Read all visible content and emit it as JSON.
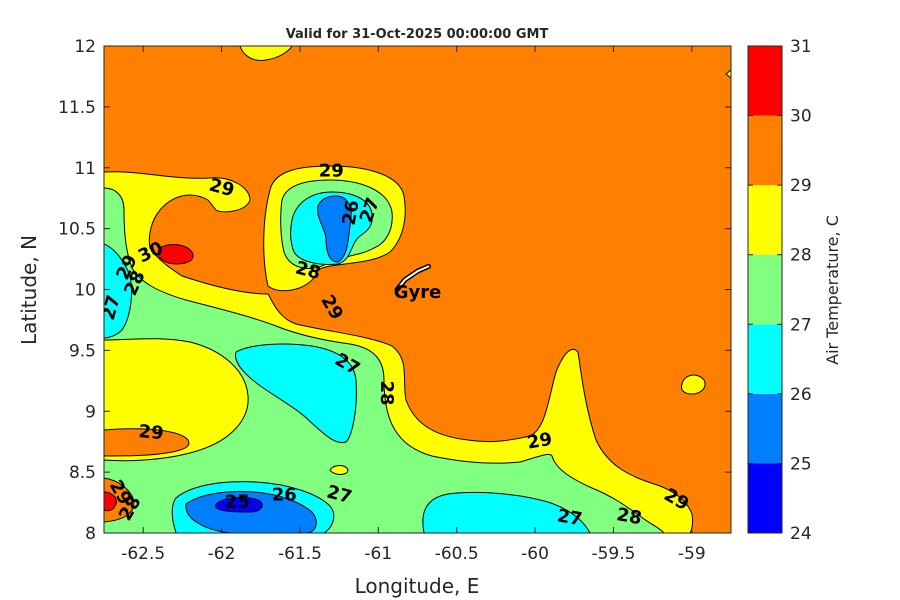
{
  "chart_data": {
    "type": "heatmap",
    "subtype": "filled-contour map",
    "title": "Valid for 31-Oct-2025 00:00:00 GMT",
    "xlabel": "Longitude, E",
    "ylabel": "Latitude, N",
    "xlim": [
      -62.75,
      -58.75
    ],
    "ylim": [
      8,
      12
    ],
    "xticks": [
      -62.5,
      -62,
      -61.5,
      -61,
      -60.5,
      -60,
      -59.5,
      -59
    ],
    "yticks": [
      8,
      8.5,
      9,
      9.5,
      10,
      10.5,
      11,
      11.5,
      12
    ],
    "colorbar": {
      "label": "Air Temperature, C",
      "levels": [
        24,
        25,
        26,
        27,
        28,
        29,
        30,
        31
      ],
      "colors": [
        "#0000ff",
        "#0080ff",
        "#00ffff",
        "#80ff80",
        "#ffff00",
        "#ff8000",
        "#ff0000",
        "#800000"
      ]
    },
    "contour_labels": [
      {
        "text": "29",
        "lon": -61.3,
        "lat": 10.97,
        "rot": 0
      },
      {
        "text": "29",
        "lon": -62.0,
        "lat": 10.83,
        "rot": 15
      },
      {
        "text": "30",
        "lon": -62.45,
        "lat": 10.3,
        "rot": -25
      },
      {
        "text": "29",
        "lon": -62.6,
        "lat": 10.18,
        "rot": -65
      },
      {
        "text": "28",
        "lon": -62.55,
        "lat": 10.05,
        "rot": -65
      },
      {
        "text": "27",
        "lon": -62.7,
        "lat": 9.85,
        "rot": -75
      },
      {
        "text": "26",
        "lon": -61.17,
        "lat": 10.63,
        "rot": -80
      },
      {
        "text": "27",
        "lon": -61.05,
        "lat": 10.65,
        "rot": -70
      },
      {
        "text": "28",
        "lon": -61.45,
        "lat": 10.15,
        "rot": 15
      },
      {
        "text": "29",
        "lon": -61.3,
        "lat": 9.85,
        "rot": 60
      },
      {
        "text": "27",
        "lon": -61.2,
        "lat": 9.38,
        "rot": 30
      },
      {
        "text": "28",
        "lon": -60.95,
        "lat": 9.15,
        "rot": 90
      },
      {
        "text": "29",
        "lon": -62.45,
        "lat": 8.82,
        "rot": 5
      },
      {
        "text": "29",
        "lon": -62.65,
        "lat": 8.33,
        "rot": 60
      },
      {
        "text": "28",
        "lon": -62.58,
        "lat": 8.2,
        "rot": -60
      },
      {
        "text": "25",
        "lon": -61.9,
        "lat": 8.25,
        "rot": 0
      },
      {
        "text": "26",
        "lon": -61.6,
        "lat": 8.31,
        "rot": 0
      },
      {
        "text": "27",
        "lon": -61.25,
        "lat": 8.31,
        "rot": 15
      },
      {
        "text": "29",
        "lon": -59.97,
        "lat": 8.75,
        "rot": -10
      },
      {
        "text": "27",
        "lon": -59.78,
        "lat": 8.12,
        "rot": 10
      },
      {
        "text": "28",
        "lon": -59.4,
        "lat": 8.13,
        "rot": 10
      },
      {
        "text": "29",
        "lon": -59.1,
        "lat": 8.27,
        "rot": 30
      }
    ],
    "annotations": [
      {
        "text": "Gyre",
        "lon": -60.75,
        "lat": 9.97
      }
    ],
    "gyre_track": [
      [
        -60.88,
        10.0
      ],
      [
        -60.83,
        10.08
      ],
      [
        -60.75,
        10.15
      ],
      [
        -60.68,
        10.19
      ]
    ]
  }
}
